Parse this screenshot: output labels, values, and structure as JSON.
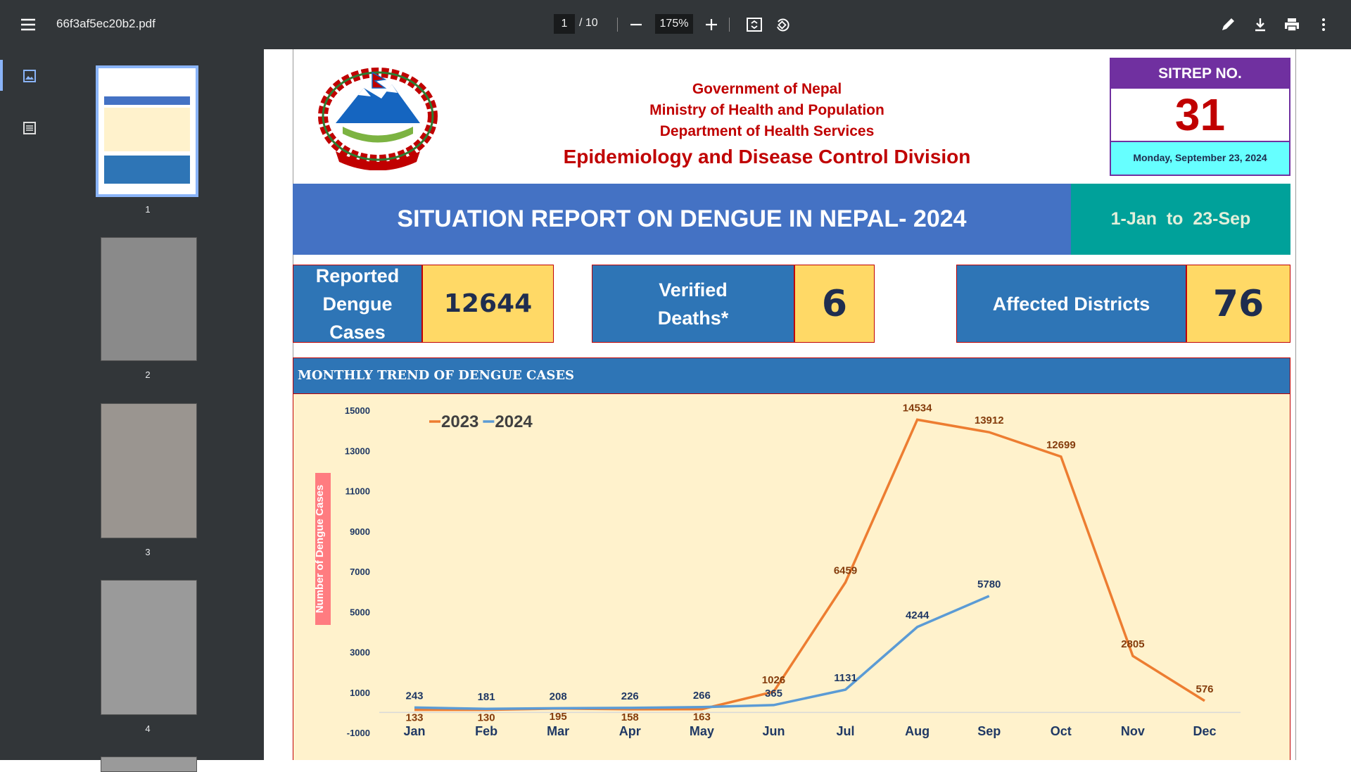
{
  "toolbar": {
    "filename": "66f3af5ec20b2.pdf",
    "page": "1",
    "page_total": "/ 10",
    "zoom": "175%"
  },
  "thumbnails": [
    "1",
    "2",
    "3",
    "4"
  ],
  "report": {
    "header_lines": [
      "Government of Nepal",
      "Ministry of Health and Population",
      "Department of Health Services",
      "Epidemiology and Disease Control Division"
    ],
    "sitrep_label": "SITREP NO.",
    "sitrep_no": "31",
    "date": "Monday, September 23, 2024",
    "banner": "SITUATION REPORT ON DENGUE IN NEPAL- 2024",
    "period": "1-Jan  to  23-Sep",
    "stats": [
      {
        "label": "Reported Dengue Cases",
        "value": 12644
      },
      {
        "label": "Verified Deaths*",
        "value": 6
      },
      {
        "label": "Affected Districts",
        "value": 76
      }
    ],
    "section_title": "MONTHLY TREND OF DENGUE CASES"
  },
  "chart_data": {
    "type": "line",
    "y_label": "Number of Dengue Cases",
    "categories": [
      "Jan",
      "Feb",
      "Mar",
      "Apr",
      "May",
      "Jun",
      "Jul",
      "Aug",
      "Sep",
      "Oct",
      "Nov",
      "Dec"
    ],
    "series": [
      {
        "name": "2023",
        "color": "#ed7d31",
        "values": [
          133,
          130,
          195,
          158,
          163,
          1026,
          6459,
          14534,
          13912,
          12699,
          2805,
          576
        ]
      },
      {
        "name": "2024",
        "color": "#5b9bd5",
        "values": [
          243,
          181,
          208,
          226,
          266,
          365,
          1131,
          4244,
          5780,
          null,
          null,
          null
        ]
      }
    ],
    "ylim": [
      -1000,
      15000
    ],
    "yticks": [
      -1000,
      1000,
      3000,
      5000,
      7000,
      9000,
      11000,
      13000,
      15000
    ],
    "legend": "top-left",
    "grid": false
  }
}
